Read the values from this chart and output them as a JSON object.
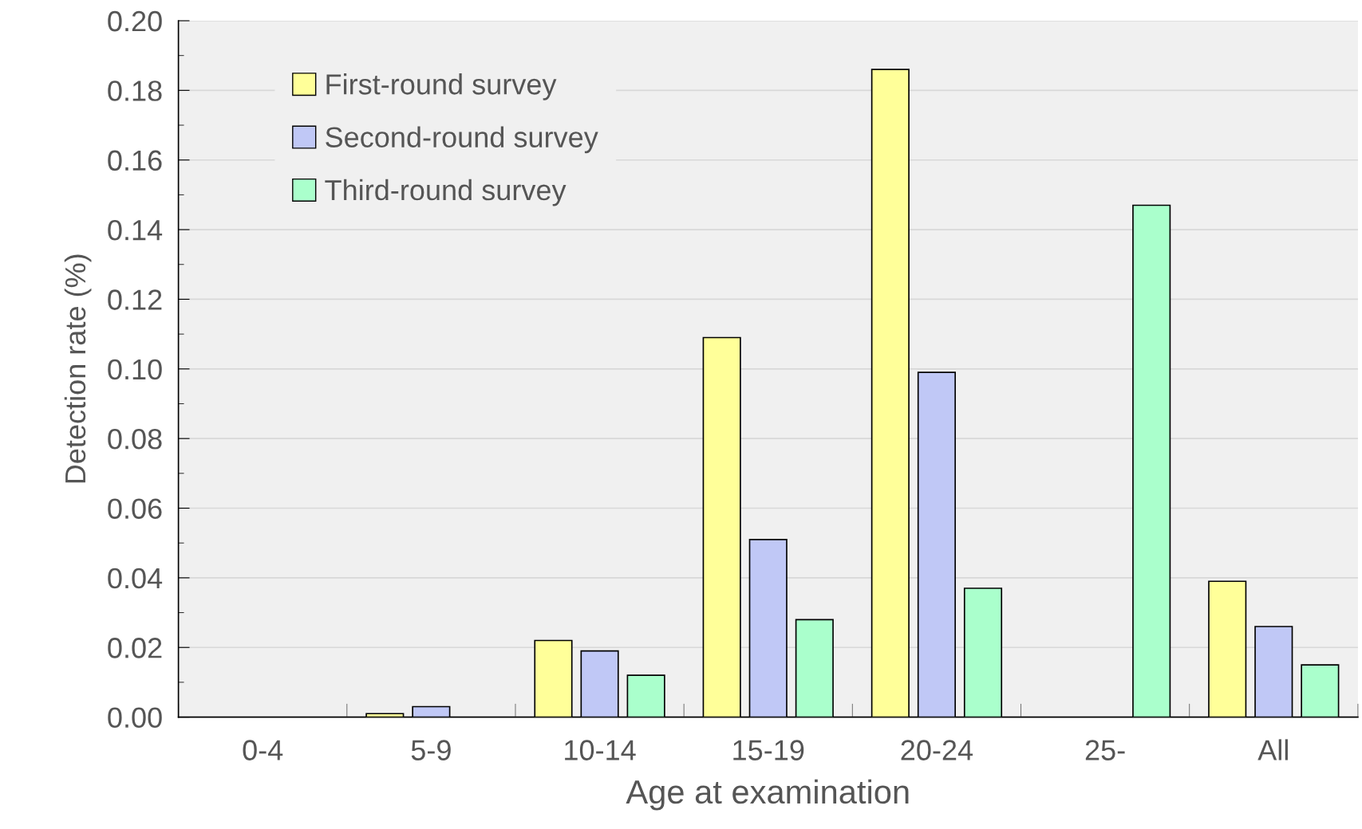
{
  "chart_data": {
    "type": "bar",
    "xlabel": "Age at examination",
    "ylabel": "Detection rate (%)",
    "categories": [
      "0-4",
      "5-9",
      "10-14",
      "15-19",
      "20-24",
      "25-",
      "All"
    ],
    "series": [
      {
        "name": "First-round survey",
        "color": "#ffff99",
        "values": [
          null,
          0.001,
          0.022,
          0.109,
          0.186,
          null,
          0.039
        ]
      },
      {
        "name": "Second-round survey",
        "color": "#c0c8f6",
        "values": [
          null,
          0.003,
          0.019,
          0.051,
          0.099,
          null,
          0.026
        ]
      },
      {
        "name": "Third-round survey",
        "color": "#aaffcc",
        "values": [
          null,
          null,
          0.012,
          0.028,
          0.037,
          0.147,
          0.015
        ]
      }
    ],
    "ylim": [
      0,
      0.2
    ],
    "yticks": [
      {
        "value": 0,
        "label": "0.00"
      },
      {
        "value": 0.01,
        "label": null
      },
      {
        "value": 0.02,
        "label": "0.02"
      },
      {
        "value": 0.03,
        "label": null
      },
      {
        "value": 0.04,
        "label": "0.04"
      },
      {
        "value": 0.05,
        "label": null
      },
      {
        "value": 0.06,
        "label": "0.06"
      },
      {
        "value": 0.07,
        "label": null
      },
      {
        "value": 0.08,
        "label": "0.08"
      },
      {
        "value": 0.09,
        "label": null
      },
      {
        "value": 0.1,
        "label": "0.10"
      },
      {
        "value": 0.11,
        "label": null
      },
      {
        "value": 0.12,
        "label": "0.12"
      },
      {
        "value": 0.13,
        "label": null
      },
      {
        "value": 0.14,
        "label": "0.14"
      },
      {
        "value": 0.15,
        "label": null
      },
      {
        "value": 0.16,
        "label": "0.16"
      },
      {
        "value": 0.17,
        "label": null
      },
      {
        "value": 0.18,
        "label": "0.18"
      },
      {
        "value": 0.19,
        "label": null
      },
      {
        "value": 0.2,
        "label": "0.20"
      }
    ],
    "grid": "y",
    "legend": "top left"
  }
}
